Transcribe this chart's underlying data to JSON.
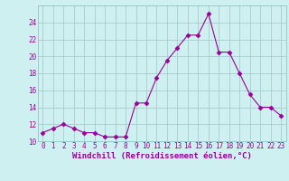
{
  "x": [
    0,
    1,
    2,
    3,
    4,
    5,
    6,
    7,
    8,
    9,
    10,
    11,
    12,
    13,
    14,
    15,
    16,
    17,
    18,
    19,
    20,
    21,
    22,
    23
  ],
  "y": [
    11,
    11.5,
    12,
    11.5,
    11,
    11,
    10.5,
    10.5,
    10.5,
    14.5,
    14.5,
    17.5,
    19.5,
    21,
    22.5,
    22.5,
    25,
    20.5,
    20.5,
    18,
    15.5,
    14,
    14,
    13
  ],
  "line_color": "#990099",
  "marker": "D",
  "marker_size": 2.5,
  "bg_color": "#cff0f0",
  "grid_color": "#aacccc",
  "xlabel": "Windchill (Refroidissement éolien,°C)",
  "xlabel_color": "#990099",
  "tick_color": "#990099",
  "ylim": [
    10,
    26
  ],
  "yticks": [
    10,
    12,
    14,
    16,
    18,
    20,
    22,
    24
  ],
  "xlim": [
    -0.5,
    23.5
  ],
  "spine_color": "#88bbbb",
  "tick_fontsize": 5.5,
  "xlabel_fontsize": 6.5
}
